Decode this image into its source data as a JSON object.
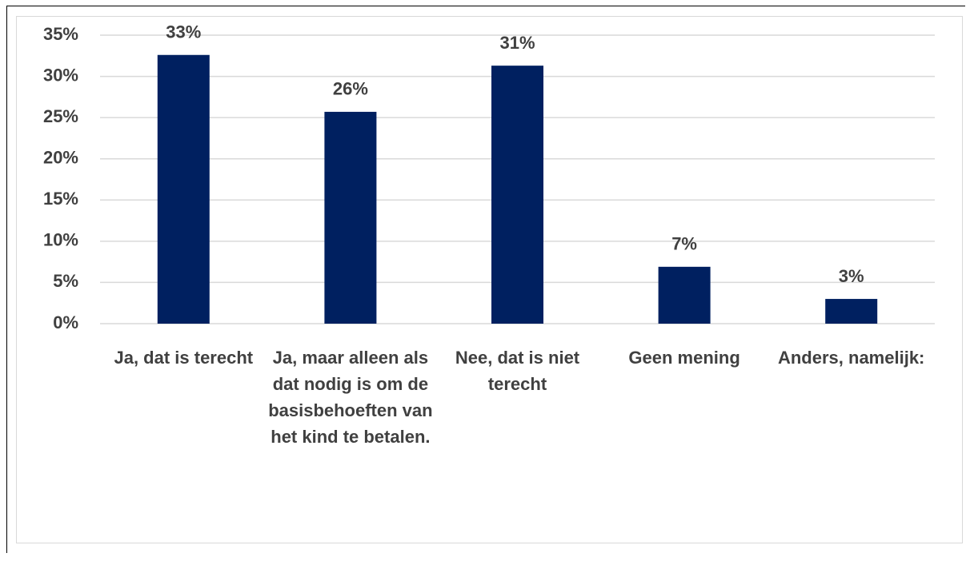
{
  "chart_data": {
    "type": "bar",
    "categories": [
      "Ja, dat is terecht",
      "Ja, maar alleen als dat nodig is om de basisbehoeften van het kind te betalen.",
      "Nee, dat is niet terecht",
      "Geen mening",
      "Anders, namelijk:"
    ],
    "values": [
      32.6,
      25.7,
      31.3,
      6.9,
      3.0
    ],
    "value_labels": [
      "33%",
      "26%",
      "31%",
      "7%",
      "3%"
    ],
    "color": "#002060",
    "ylim": [
      0,
      35
    ],
    "yticks": [
      {
        "value": 0,
        "label": "0%"
      },
      {
        "value": 5,
        "label": "5%"
      },
      {
        "value": 10,
        "label": "10%"
      },
      {
        "value": 15,
        "label": "15%"
      },
      {
        "value": 20,
        "label": "20%"
      },
      {
        "value": 25,
        "label": "25%"
      },
      {
        "value": 30,
        "label": "30%"
      },
      {
        "value": 35,
        "label": "35%"
      }
    ],
    "grid": true
  }
}
